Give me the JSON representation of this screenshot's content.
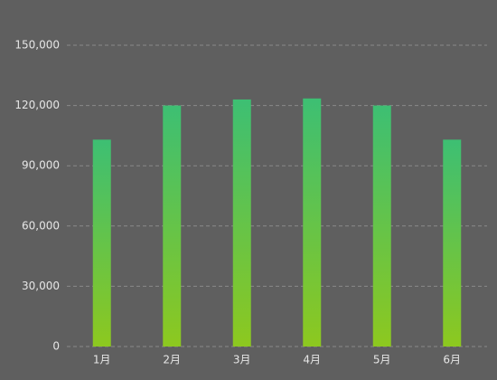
{
  "chart_data": {
    "type": "bar",
    "categories": [
      "1月",
      "2月",
      "3月",
      "4月",
      "5月",
      "6月"
    ],
    "values": [
      103000,
      120000,
      123000,
      123500,
      120000,
      103000
    ],
    "color": [
      "#3dbf73",
      "#8dc81f"
    ],
    "ylim": [
      0,
      150000
    ],
    "yticks": [
      0,
      {
        "value": 30000,
        "label": "30,000"
      },
      {
        "value": 60000,
        "label": "60,000"
      },
      {
        "value": 90000,
        "label": "90,000"
      },
      {
        "value": 120000,
        "label": "120,000"
      },
      {
        "value": 150000,
        "label": "150,000"
      }
    ],
    "grid": true
  }
}
